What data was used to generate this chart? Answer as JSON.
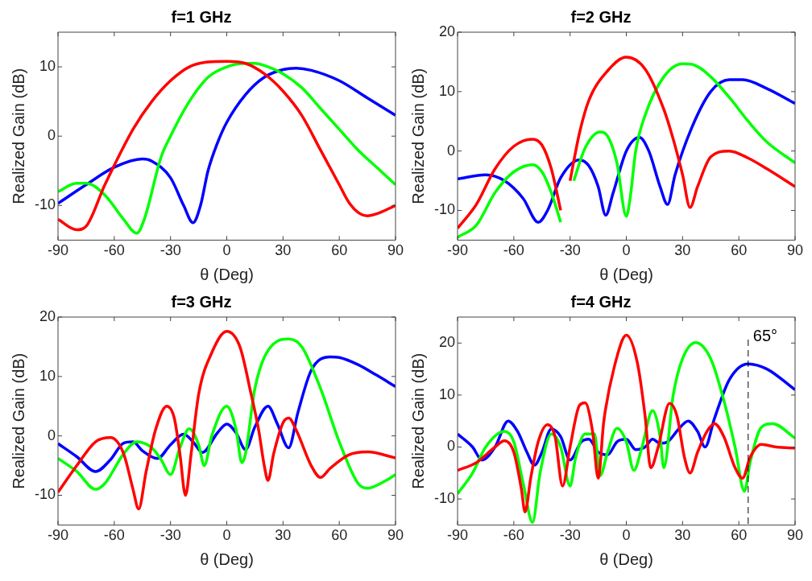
{
  "chart_data": [
    {
      "type": "line",
      "title": "f=1 GHz",
      "xlabel": "θ (Deg)",
      "ylabel": "Realized Gain (dB)",
      "xlim": [
        -90,
        90
      ],
      "xticks": [
        -90,
        -60,
        -30,
        0,
        30,
        60,
        90
      ],
      "ylim": [
        -15,
        15
      ],
      "yticks": [
        -10,
        0,
        10
      ],
      "series": [
        {
          "color": "#ff0000",
          "x": [
            -90,
            -80,
            -75,
            -65,
            -50,
            -40,
            -30,
            -20,
            -10,
            0,
            10,
            20,
            30,
            40,
            50,
            60,
            65,
            70,
            75,
            80,
            90
          ],
          "values": [
            -12,
            -13.5,
            -13,
            -7,
            1,
            5,
            8,
            10,
            10.7,
            10.8,
            10.5,
            9,
            6.5,
            3,
            -2,
            -7,
            -9.5,
            -11,
            -11.5,
            -11.2,
            -10
          ]
        },
        {
          "color": "#00ff00",
          "x": [
            -90,
            -80,
            -75,
            -65,
            -55,
            -48,
            -44,
            -35,
            -30,
            -20,
            -10,
            0,
            10,
            15,
            20,
            30,
            40,
            50,
            60,
            70,
            80,
            90
          ],
          "values": [
            -8,
            -6.8,
            -6.8,
            -8.5,
            -12,
            -14,
            -12,
            -3,
            0,
            5,
            8.5,
            10,
            10.5,
            10.5,
            10.2,
            9,
            7,
            4,
            1,
            -2,
            -4.5,
            -7
          ]
        },
        {
          "color": "#0000ff",
          "x": [
            -90,
            -75,
            -60,
            -45,
            -40,
            -30,
            -23,
            -18,
            -14,
            -10,
            -5,
            0,
            10,
            20,
            30,
            37,
            45,
            60,
            75,
            90
          ],
          "values": [
            -9.7,
            -7,
            -4.5,
            -3.3,
            -3.6,
            -6,
            -10,
            -12.5,
            -10,
            -5,
            -1,
            2,
            6,
            8.5,
            9.6,
            9.8,
            9.5,
            8,
            5.5,
            3
          ]
        }
      ]
    },
    {
      "type": "line",
      "title": "f=2 GHz",
      "xlabel": "θ (Deg)",
      "ylabel": "Realized Gain (dB)",
      "xlim": [
        -90,
        90
      ],
      "xticks": [
        -90,
        -60,
        -30,
        0,
        30,
        60,
        90
      ],
      "ylim": [
        -15,
        20
      ],
      "yticks": [
        -10,
        0,
        10,
        20
      ],
      "series": [
        {
          "color": "#ff0000",
          "x": [
            -90,
            -80,
            -70,
            -60,
            -50,
            -45,
            -40,
            -35,
            -33,
            -30,
            -25,
            -20,
            -10,
            0,
            10,
            20,
            25,
            30,
            34,
            38,
            45,
            55,
            65,
            75,
            90
          ],
          "values": [
            -13,
            -9,
            -3,
            0.8,
            2,
            1,
            -3,
            -10,
            null,
            -5,
            3,
            8.5,
            13.5,
            15.8,
            13.8,
            7,
            2,
            -4,
            -9.5,
            -6,
            -1,
            0,
            -1.2,
            -3,
            -6
          ]
        },
        {
          "color": "#00ff00",
          "x": [
            -90,
            -80,
            -70,
            -60,
            -50,
            -45,
            -40,
            -35,
            -32,
            -28,
            -22,
            -14,
            -10,
            -5,
            0,
            2,
            5,
            10,
            20,
            30,
            35,
            45,
            55,
            65,
            75,
            90
          ],
          "values": [
            -14.5,
            -12.5,
            -7,
            -3.5,
            -2.3,
            -3.5,
            -7,
            -12,
            null,
            -5,
            0.5,
            3.2,
            2.5,
            -2,
            -11,
            -8,
            0,
            6,
            12.5,
            14.7,
            14.6,
            12.5,
            9,
            5,
            1.5,
            -2
          ]
        },
        {
          "color": "#0000ff",
          "x": [
            -90,
            -75,
            -65,
            -55,
            -47,
            -42,
            -35,
            -25,
            -20,
            -15,
            -11,
            -7,
            0,
            7,
            12,
            18,
            22,
            26,
            35,
            45,
            55,
            62,
            75,
            90
          ],
          "values": [
            -4.7,
            -4,
            -5,
            -8,
            -12,
            -10,
            -4.5,
            -1.5,
            -2.5,
            -6,
            -10.8,
            -7,
            0,
            2.3,
            0,
            -6,
            -9,
            -4,
            4,
            10,
            12,
            12,
            10.5,
            8
          ]
        }
      ]
    },
    {
      "type": "line",
      "title": "f=3 GHz",
      "xlabel": "θ (Deg)",
      "ylabel": "Realized Gain (dB)",
      "xlim": [
        -90,
        90
      ],
      "xticks": [
        -90,
        -60,
        -30,
        0,
        30,
        60,
        90
      ],
      "ylim": [
        -15,
        20
      ],
      "yticks": [
        -10,
        0,
        10,
        20
      ],
      "series": [
        {
          "color": "#ff0000",
          "x": [
            -90,
            -80,
            -70,
            -62,
            -55,
            -50,
            -47,
            -43,
            -38,
            -32,
            -28,
            -25,
            -22,
            -19,
            -15,
            -8,
            0,
            7,
            13,
            17,
            20,
            22,
            25,
            30,
            33,
            37,
            45,
            50,
            55,
            65,
            75,
            90
          ],
          "values": [
            -9.5,
            -5,
            -1,
            -0.3,
            -3,
            -9,
            -12.3,
            -6,
            1,
            5,
            3,
            -3,
            -10,
            -3,
            7,
            14,
            17.6,
            15,
            7,
            1,
            -5,
            -7.5,
            -3,
            2.2,
            3,
            1,
            -5,
            -7,
            -5.5,
            -3.2,
            -2.7,
            -3.7
          ]
        },
        {
          "color": "#00ff00",
          "x": [
            -90,
            -80,
            -70,
            -65,
            -55,
            -48,
            -40,
            -35,
            -30,
            -25,
            -20,
            -15,
            -12,
            -8,
            0,
            5,
            8,
            10,
            15,
            25,
            33,
            40,
            50,
            60,
            70,
            75,
            85,
            90
          ],
          "values": [
            -3.8,
            -6,
            -9,
            -8,
            -3,
            -1,
            -2,
            -4,
            -6.5,
            -2,
            1.2,
            -1.5,
            -5,
            0,
            5,
            1,
            -4.5,
            -3,
            8,
            15.5,
            16.3,
            15,
            8,
            -1,
            -8,
            -8.8,
            -7.5,
            -6.5
          ]
        },
        {
          "color": "#0000ff",
          "x": [
            -90,
            -80,
            -70,
            -62,
            -55,
            -50,
            -45,
            -37,
            -30,
            -23,
            -18,
            -13,
            -5,
            0,
            5,
            10,
            15,
            22,
            27,
            33,
            38,
            45,
            55,
            60,
            70,
            80,
            90
          ],
          "values": [
            -1.3,
            -3.5,
            -6,
            -4,
            -1.2,
            -1,
            -2.5,
            -3.8,
            -1.5,
            0.3,
            -1,
            -2.8,
            0.5,
            2,
            0.5,
            -2.3,
            1.5,
            5,
            2,
            -2,
            4,
            11,
            13.3,
            13.2,
            12,
            10.2,
            8.3
          ]
        }
      ]
    },
    {
      "type": "line",
      "title": "f=4 GHz",
      "xlabel": "θ (Deg)",
      "ylabel": "Realized Gain (dB)",
      "xlim": [
        -90,
        90
      ],
      "xticks": [
        -90,
        -60,
        -30,
        0,
        30,
        60,
        90
      ],
      "ylim": [
        -15,
        25
      ],
      "yticks": [
        -10,
        0,
        10,
        20
      ],
      "ref_lines": [
        {
          "axis": "x",
          "value": 65,
          "label": "65°",
          "line_style": "dashed",
          "color": "#000000"
        }
      ],
      "series": [
        {
          "color": "#ff0000",
          "x": [
            -90,
            -80,
            -70,
            -65,
            -60,
            -56,
            -54,
            -51,
            -47,
            -42,
            -38,
            -34,
            -30,
            -25,
            -22,
            -18,
            -15,
            -12,
            -6,
            0,
            6,
            10,
            13,
            17,
            23,
            27,
            31,
            34,
            38,
            43,
            47,
            52,
            58,
            62,
            66,
            72,
            80,
            90
          ],
          "values": [
            -4.5,
            -3,
            0,
            1.2,
            -1,
            -8,
            -12.5,
            -6,
            1,
            4.3,
            2,
            -7.5,
            0,
            8,
            8.5,
            3,
            -6,
            5,
            16,
            21.5,
            16,
            6,
            -4,
            0,
            8.4,
            6,
            -2,
            -5,
            -1,
            3,
            4.5,
            2,
            -4,
            -6,
            -2,
            0.5,
            0,
            -0.2
          ]
        },
        {
          "color": "#00ff00",
          "x": [
            -90,
            -82,
            -75,
            -65,
            -60,
            -55,
            -50,
            -46,
            -40,
            -35,
            -30,
            -27,
            -22,
            -17,
            -14,
            -10,
            -5,
            0,
            4,
            8,
            14,
            18,
            20,
            25,
            30,
            37,
            45,
            52,
            58,
            63,
            66,
            72,
            78,
            90
          ],
          "values": [
            -9,
            -5,
            0,
            3,
            1,
            -7,
            -14.5,
            -5,
            2.5,
            0,
            -7.5,
            -2,
            2.5,
            2.5,
            -5.5,
            -1,
            3.6,
            1,
            -4.5,
            -0.5,
            7,
            2,
            -4,
            10,
            17,
            20.1,
            17,
            9,
            0,
            -8.5,
            -3,
            3.8,
            4.5,
            1.7
          ]
        },
        {
          "color": "#0000ff",
          "x": [
            -90,
            -82,
            -77,
            -70,
            -63,
            -58,
            -53,
            -49,
            -45,
            -40,
            -35,
            -30,
            -24,
            -20,
            -15,
            -10,
            -5,
            0,
            5,
            10,
            14,
            18,
            22,
            28,
            33,
            38,
            42,
            47,
            55,
            65,
            75,
            90
          ],
          "values": [
            2.5,
            0,
            -2.5,
            0,
            5,
            3,
            -1,
            -3.5,
            -1,
            3.5,
            2,
            -2.5,
            1,
            1.5,
            -1,
            -1.5,
            1,
            1.5,
            -0.5,
            0,
            1.5,
            0.7,
            1,
            3.5,
            5,
            3,
            0,
            5.5,
            13,
            16,
            15,
            11
          ]
        }
      ]
    }
  ]
}
